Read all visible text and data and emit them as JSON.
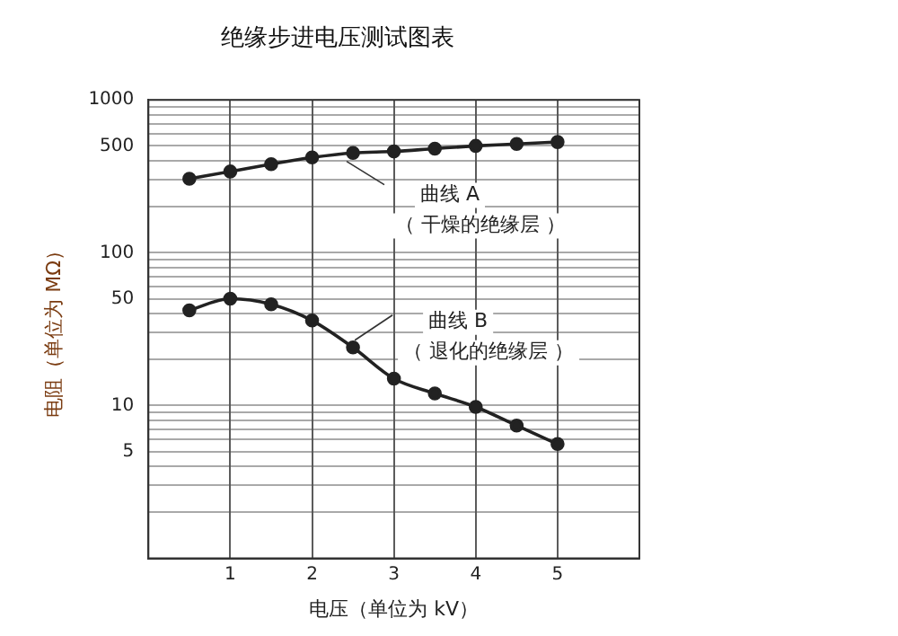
{
  "chart_data": {
    "type": "line",
    "title": "绝缘步进电压测试图表",
    "xlabel": "电压（单位为 kV）",
    "ylabel": "电阻（单位为 MΩ）",
    "x": [
      0.5,
      1,
      1.5,
      2,
      2.5,
      3,
      3.5,
      4,
      4.5,
      5
    ],
    "series": [
      {
        "color": "#222222",
        "values": [
          305,
          340,
          380,
          420,
          450,
          460,
          480,
          500,
          515,
          530
        ]
      },
      {
        "color": "#222222",
        "values": [
          42,
          50,
          46,
          36,
          24,
          15,
          12,
          9.8,
          7.4,
          5.6
        ]
      }
    ],
    "annotations": [
      {
        "text": "曲线 A\n（ 干燥的绝缘层 ）",
        "x": 2.4,
        "y": 430
      },
      {
        "text": "曲线 B\n（ 退化的绝缘层 ）",
        "x": 2.5,
        "y": 24
      }
    ],
    "log": "y",
    "xlim": [
      0,
      6
    ],
    "xticks": [
      1,
      2,
      3,
      4,
      5
    ],
    "ylim": [
      1,
      1000
    ],
    "yticks": [
      {
        "value": 2,
        "label": null
      },
      {
        "value": 3,
        "label": null
      },
      {
        "value": 4,
        "label": null
      },
      5,
      {
        "value": 6,
        "label": null
      },
      {
        "value": 7,
        "label": null
      },
      {
        "value": 8,
        "label": null
      },
      {
        "value": 9,
        "label": null
      },
      10,
      {
        "value": 20,
        "label": null
      },
      {
        "value": 30,
        "label": null
      },
      {
        "value": 40,
        "label": null
      },
      50,
      {
        "value": 60,
        "label": null
      },
      {
        "value": 70,
        "label": null
      },
      {
        "value": 80,
        "label": null
      },
      {
        "value": 90,
        "label": null
      },
      100,
      {
        "value": 200,
        "label": null
      },
      {
        "value": 300,
        "label": null
      },
      {
        "value": 400,
        "label": null
      },
      500,
      {
        "value": 600,
        "label": null
      },
      {
        "value": 700,
        "label": null
      },
      {
        "value": 800,
        "label": null
      },
      {
        "value": 900,
        "label": null
      },
      1000
    ],
    "grid": true,
    "legend": false,
    "marker": "circle",
    "line_style": "solid"
  }
}
